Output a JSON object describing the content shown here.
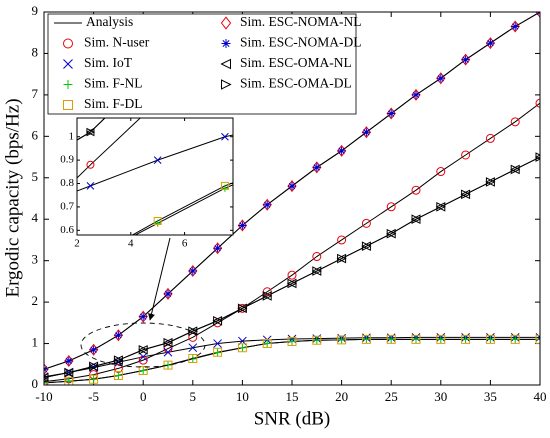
{
  "chart_data": [
    {
      "type": "line",
      "xlabel": "SNR (dB)",
      "ylabel": "Ergodic capacity (bps/Hz)",
      "analysis_label": "Analysis",
      "x": [
        -10,
        -7.5,
        -5,
        -2.5,
        0,
        2.5,
        5,
        7.5,
        10,
        12.5,
        15,
        17.5,
        20,
        22.5,
        25,
        27.5,
        30,
        32.5,
        35,
        37.5,
        40
      ],
      "xlim": [
        -10,
        40
      ],
      "xticks": [
        -10,
        -5,
        0,
        5,
        10,
        15,
        20,
        25,
        30,
        35,
        40
      ],
      "ylim": [
        0,
        9
      ],
      "yticks": [
        0,
        1,
        2,
        3,
        4,
        5,
        6,
        7,
        8,
        9
      ],
      "legend": "upper left",
      "series": [
        {
          "name": "Sim. N-user",
          "color": "#e8000b",
          "marker": "circle",
          "values": [
            0.08,
            0.15,
            0.25,
            0.4,
            0.6,
            0.88,
            1.15,
            1.5,
            1.85,
            2.25,
            2.65,
            3.1,
            3.5,
            3.9,
            4.3,
            4.7,
            5.15,
            5.55,
            5.95,
            6.35,
            6.8
          ]
        },
        {
          "name": "Sim. IoT",
          "color": "#0000cc",
          "marker": "x",
          "values": [
            0.2,
            0.3,
            0.42,
            0.55,
            0.68,
            0.79,
            0.9,
            1.0,
            1.06,
            1.09,
            1.11,
            1.12,
            1.13,
            1.14,
            1.14,
            1.15,
            1.15,
            1.15,
            1.15,
            1.15,
            1.15
          ]
        },
        {
          "name": "Sim. F-NL",
          "color": "#00c800",
          "marker": "plus",
          "values": [
            0.05,
            0.09,
            0.14,
            0.23,
            0.35,
            0.48,
            0.63,
            0.78,
            0.9,
            1.0,
            1.05,
            1.08,
            1.09,
            1.1,
            1.1,
            1.1,
            1.1,
            1.1,
            1.1,
            1.1,
            1.1
          ]
        },
        {
          "name": "Sim. F-DL",
          "color": "#d9a000",
          "marker": "square",
          "values": [
            0.05,
            0.09,
            0.14,
            0.23,
            0.35,
            0.48,
            0.64,
            0.79,
            0.9,
            1.0,
            1.05,
            1.08,
            1.09,
            1.1,
            1.1,
            1.1,
            1.1,
            1.1,
            1.1,
            1.1,
            1.1
          ]
        },
        {
          "name": "Sim. ESC-NOMA-NL",
          "color": "#e8000b",
          "marker": "diamond",
          "values": [
            0.38,
            0.58,
            0.85,
            1.2,
            1.65,
            2.2,
            2.75,
            3.3,
            3.85,
            4.35,
            4.8,
            5.25,
            5.65,
            6.1,
            6.55,
            7.0,
            7.4,
            7.85,
            8.25,
            8.65,
            9.0
          ]
        },
        {
          "name": "Sim. ESC-NOMA-DL",
          "color": "#0000cc",
          "marker": "star",
          "values": [
            0.38,
            0.58,
            0.85,
            1.2,
            1.65,
            2.2,
            2.75,
            3.3,
            3.85,
            4.35,
            4.8,
            5.25,
            5.65,
            6.1,
            6.55,
            7.0,
            7.4,
            7.85,
            8.25,
            8.65,
            9.0
          ]
        },
        {
          "name": "Sim. ESC-OMA-NL",
          "color": "#000000",
          "marker": "triangle-left",
          "values": [
            0.18,
            0.3,
            0.45,
            0.6,
            0.85,
            1.02,
            1.3,
            1.55,
            1.85,
            2.15,
            2.45,
            2.75,
            3.05,
            3.35,
            3.65,
            4.0,
            4.3,
            4.6,
            4.9,
            5.2,
            5.5
          ]
        },
        {
          "name": "Sim. ESC-OMA-DL",
          "color": "#000000",
          "marker": "triangle-right",
          "values": [
            0.18,
            0.3,
            0.45,
            0.6,
            0.85,
            1.02,
            1.3,
            1.55,
            1.85,
            2.15,
            2.45,
            2.75,
            3.05,
            3.35,
            3.65,
            4.0,
            4.3,
            4.6,
            4.9,
            5.2,
            5.5
          ]
        }
      ]
    },
    {
      "type": "inset",
      "xlim": [
        2,
        7.8
      ],
      "xticks": [
        2,
        4,
        6
      ],
      "ylim": [
        0.58,
        1.08
      ],
      "yticks": [
        0.6,
        0.7,
        0.8,
        0.9,
        1
      ]
    }
  ]
}
